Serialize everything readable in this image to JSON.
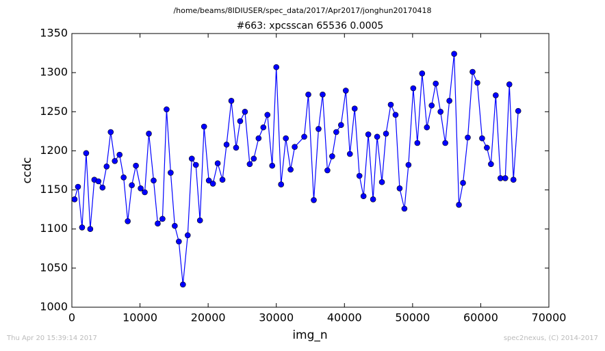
{
  "chart_data": {
    "type": "line",
    "title": "/home/beams/8IDIUSER/spec_data/2017/Apr2017/jonghun20170418",
    "subtitle": "#663: xpcsscan 65536 0.0005",
    "x_label": "img_n",
    "y_label": "ccdc",
    "footer_left": "Thu Apr 20 15:39:14 2017",
    "footer_right": "spec2nexus, (C) 2014-2017",
    "color": "#0000ff",
    "x": [
      400,
      900,
      1500,
      2100,
      2700,
      3300,
      3900,
      4500,
      5100,
      5700,
      6300,
      7000,
      7600,
      8200,
      8800,
      9400,
      10100,
      10700,
      11300,
      12000,
      12600,
      13300,
      13900,
      14500,
      15100,
      15700,
      16300,
      17000,
      17600,
      18200,
      18800,
      19400,
      20100,
      20700,
      21400,
      22100,
      22700,
      23400,
      24100,
      24700,
      25400,
      26100,
      26700,
      27400,
      28100,
      28700,
      29400,
      30000,
      30700,
      31400,
      32100,
      32700,
      34100,
      34700,
      35500,
      36200,
      36800,
      37500,
      38200,
      38800,
      39500,
      40200,
      40800,
      41500,
      42200,
      42800,
      43500,
      44200,
      44800,
      45500,
      46100,
      46800,
      47500,
      48100,
      48800,
      49400,
      50100,
      50700,
      51400,
      52100,
      52800,
      53400,
      54100,
      54800,
      55400,
      56100,
      56800,
      57400,
      58100,
      58800,
      59500,
      60200,
      60900,
      61500,
      62200,
      62900,
      63600,
      64200,
      64800,
      65500
    ],
    "values": [
      1138,
      1154,
      1102,
      1197,
      1100,
      1163,
      1161,
      1153,
      1180,
      1224,
      1187,
      1195,
      1166,
      1110,
      1156,
      1181,
      1152,
      1147,
      1222,
      1162,
      1107,
      1113,
      1253,
      1172,
      1104,
      1084,
      1029,
      1092,
      1190,
      1182,
      1111,
      1231,
      1162,
      1158,
      1184,
      1163,
      1208,
      1264,
      1204,
      1238,
      1250,
      1183,
      1190,
      1216,
      1230,
      1246,
      1181,
      1307,
      1157,
      1216,
      1176,
      1205,
      1218,
      1272,
      1137,
      1228,
      1272,
      1175,
      1193,
      1224,
      1233,
      1277,
      1196,
      1254,
      1168,
      1142,
      1221,
      1138,
      1218,
      1160,
      1222,
      1259,
      1246,
      1152,
      1126,
      1182,
      1280,
      1210,
      1299,
      1230,
      1258,
      1286,
      1250,
      1210,
      1264,
      1324,
      1131,
      1159,
      1217,
      1301,
      1287,
      1216,
      1204,
      1183,
      1271,
      1165,
      1165,
      1285,
      1163,
      1251
    ],
    "xlim": [
      0,
      70000
    ],
    "ylim": [
      1000,
      1350
    ],
    "xticks": [
      0,
      10000,
      20000,
      30000,
      40000,
      50000,
      60000,
      70000
    ],
    "yticks": [
      1000,
      1050,
      1100,
      1150,
      1200,
      1250,
      1300,
      1350
    ]
  }
}
